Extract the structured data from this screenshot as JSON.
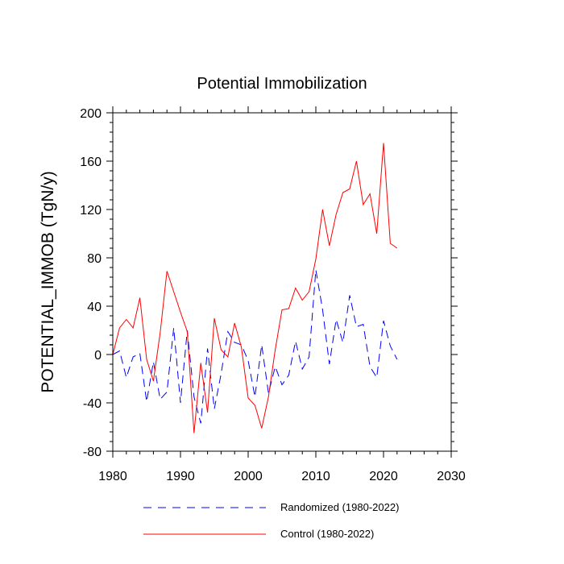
{
  "chart_data": {
    "type": "line",
    "title": "Potential Immobilization",
    "xlabel": "",
    "ylabel": "POTENTIAL_IMMOB  (TgN/y)",
    "xlim": [
      1980,
      2030
    ],
    "ylim": [
      -80,
      200
    ],
    "xticks": [
      1980,
      1990,
      2000,
      2010,
      2020,
      2030
    ],
    "yticks": [
      -80,
      -40,
      0,
      40,
      80,
      120,
      160,
      200
    ],
    "xtick_labels": [
      "1980",
      "1990",
      "2000",
      "2010",
      "2020",
      "2030"
    ],
    "ytick_labels": [
      "-80",
      "-40",
      "0",
      "40",
      "80",
      "120",
      "160",
      "200"
    ],
    "legend_position": "bottom",
    "series": [
      {
        "name": "Randomized (1980-2022)",
        "color": "#0000ff",
        "style": "dashed",
        "x": [
          1980,
          1981,
          1982,
          1983,
          1984,
          1985,
          1986,
          1987,
          1988,
          1989,
          1990,
          1991,
          1992,
          1993,
          1994,
          1995,
          1996,
          1997,
          1998,
          1999,
          2000,
          2001,
          2002,
          2003,
          2004,
          2005,
          2006,
          2007,
          2008,
          2009,
          2010,
          2011,
          2012,
          2013,
          2014,
          2015,
          2016,
          2017,
          2018,
          2019,
          2020,
          2021,
          2022
        ],
        "y": [
          0,
          3,
          -19,
          -2,
          1,
          -39,
          -6,
          -37,
          -31,
          22,
          -40,
          20,
          -35,
          -57,
          5,
          -45,
          -16,
          19,
          10,
          8,
          -5,
          -35,
          8,
          -32,
          -10,
          -25,
          -17,
          11,
          -12,
          -2,
          70,
          37,
          -8,
          29,
          10,
          49,
          23,
          25,
          -10,
          -19,
          28,
          7,
          -4
        ]
      },
      {
        "name": "Control (1980-2022)",
        "color": "#ff0000",
        "style": "solid",
        "x": [
          1980,
          1981,
          1982,
          1983,
          1984,
          1985,
          1986,
          1987,
          1988,
          1989,
          1990,
          1991,
          1992,
          1993,
          1994,
          1995,
          1996,
          1997,
          1998,
          1999,
          2000,
          2001,
          2002,
          2003,
          2004,
          2005,
          2006,
          2007,
          2008,
          2009,
          2010,
          2011,
          2012,
          2013,
          2014,
          2015,
          2016,
          2017,
          2018,
          2019,
          2020,
          2021,
          2022
        ],
        "y": [
          0,
          22,
          29,
          22,
          47,
          -4,
          -22,
          18,
          69,
          52,
          35,
          19,
          -65,
          -7,
          -48,
          30,
          4,
          -2,
          26,
          6,
          -36,
          -42,
          -61,
          -35,
          4,
          37,
          38,
          55,
          45,
          52,
          79,
          120,
          90,
          116,
          134,
          137,
          160,
          124,
          133,
          100,
          175,
          92,
          88
        ]
      }
    ]
  }
}
